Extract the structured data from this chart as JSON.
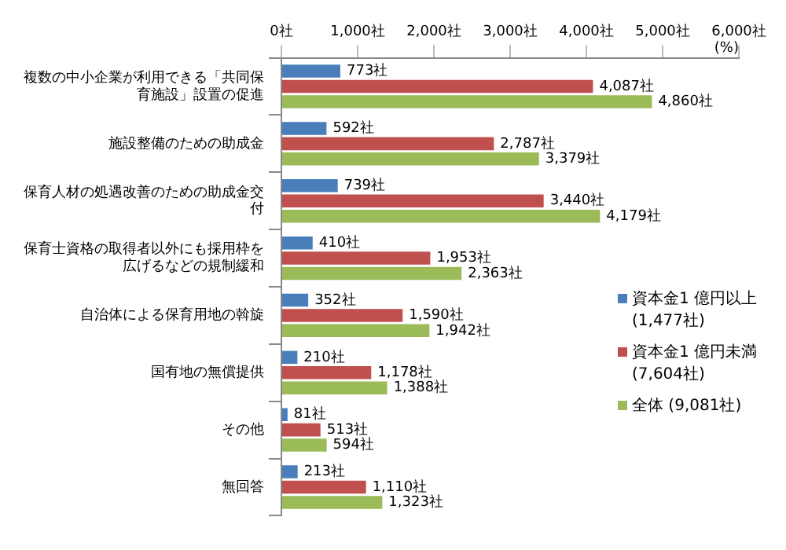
{
  "chart_data": {
    "type": "bar",
    "orientation": "horizontal",
    "xlabel": "(%)",
    "categories": [
      "複数の中小企業が利用できる「共同保育施設」設置の促進",
      "施設整備のための助成金",
      "保育人材の処遇改善のための助成金交付",
      "保育士資格の取得者以外にも採用枠を広げるなどの規制緩和",
      "自治体による保育用地の斡旋",
      "国有地の無償提供",
      "その他",
      "無回答"
    ],
    "series": [
      {
        "name": "資本金1 億円以上 (1,477社)",
        "color": "#4a7ebb",
        "values": [
          773,
          592,
          739,
          410,
          352,
          210,
          81,
          213
        ],
        "value_labels": [
          "773社",
          "592社",
          "739社",
          "410社",
          "352社",
          "210社",
          "81社",
          "213社"
        ]
      },
      {
        "name": "資本金1 億円未満 (7,604社)",
        "color": "#c0504d",
        "values": [
          4087,
          2787,
          3440,
          1953,
          1590,
          1178,
          513,
          1110
        ],
        "value_labels": [
          "4,087社",
          "2,787社",
          "3,440社",
          "1,953社",
          "1,590社",
          "1,178社",
          "513社",
          "1,110社"
        ]
      },
      {
        "name": "全体 (9,081社)",
        "color": "#9bbb59",
        "values": [
          4860,
          3379,
          4179,
          2363,
          1942,
          1388,
          594,
          1323
        ],
        "value_labels": [
          "4,860社",
          "3,379社",
          "4,179社",
          "2,363社",
          "1,942社",
          "1,388社",
          "594社",
          "1,323社"
        ]
      }
    ],
    "xlim": [
      0,
      6000
    ],
    "xticks": [
      {
        "value": 0,
        "label": "0社"
      },
      {
        "value": 1000,
        "label": "1,000社"
      },
      {
        "value": 2000,
        "label": "2,000社"
      },
      {
        "value": 3000,
        "label": "3,000社"
      },
      {
        "value": 4000,
        "label": "4,000社"
      },
      {
        "value": 5000,
        "label": "5,000社"
      },
      {
        "value": 6000,
        "label": "6,000社"
      }
    ],
    "grid": false,
    "legend": "right"
  }
}
